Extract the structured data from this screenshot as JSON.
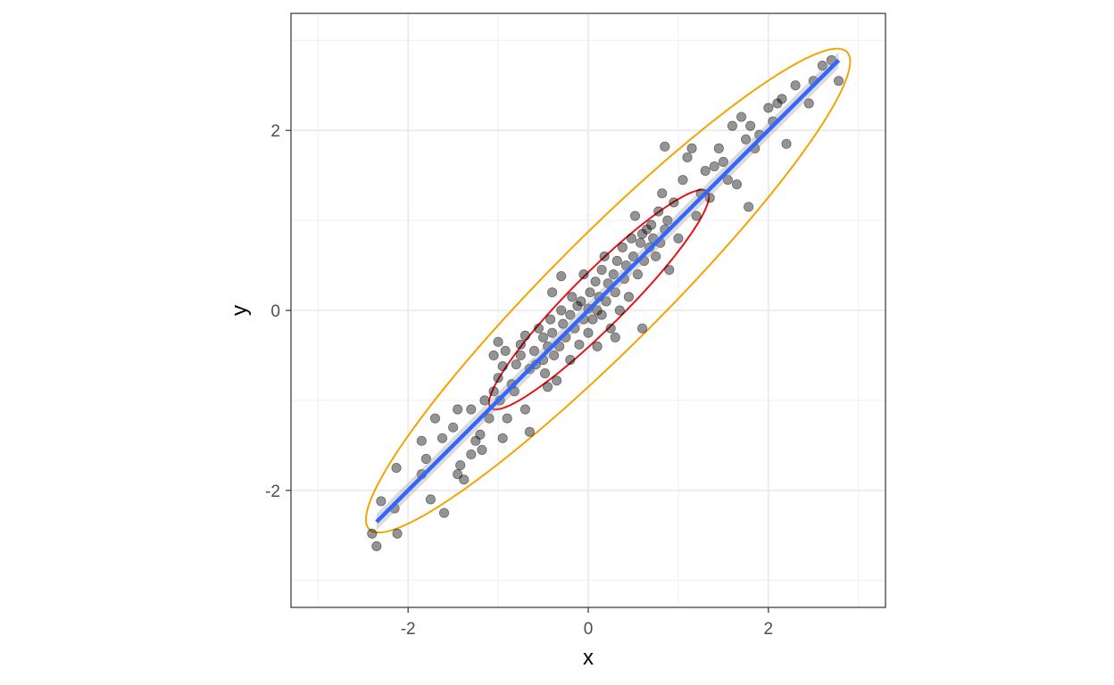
{
  "chart_data": {
    "type": "scatter",
    "xlabel": "x",
    "ylabel": "y",
    "xlim": [
      -3.3,
      3.3
    ],
    "ylim": [
      -3.3,
      3.3
    ],
    "x_ticks": [
      -2,
      0,
      2
    ],
    "y_ticks": [
      -2,
      0,
      2
    ],
    "x_tick_labels": [
      "-2",
      "0",
      "2"
    ],
    "y_tick_labels": [
      "-2",
      "0",
      "2"
    ],
    "grid": true,
    "points": [
      [
        -2.35,
        -2.62
      ],
      [
        -2.4,
        -2.48
      ],
      [
        -2.12,
        -2.48
      ],
      [
        -2.3,
        -2.12
      ],
      [
        -2.15,
        -2.2
      ],
      [
        -2.13,
        -1.75
      ],
      [
        -1.85,
        -1.45
      ],
      [
        -1.8,
        -1.65
      ],
      [
        -1.85,
        -1.82
      ],
      [
        -1.75,
        -2.1
      ],
      [
        -1.6,
        -2.25
      ],
      [
        -1.7,
        -1.2
      ],
      [
        -1.62,
        -1.42
      ],
      [
        -1.5,
        -1.3
      ],
      [
        -1.45,
        -1.1
      ],
      [
        -1.45,
        -1.82
      ],
      [
        -1.42,
        -1.72
      ],
      [
        -1.38,
        -1.88
      ],
      [
        -1.3,
        -1.6
      ],
      [
        -1.3,
        -1.1
      ],
      [
        -1.25,
        -1.45
      ],
      [
        -1.2,
        -1.38
      ],
      [
        -1.18,
        -1.55
      ],
      [
        -1.15,
        -1.0
      ],
      [
        -1.1,
        -1.2
      ],
      [
        -1.05,
        -0.9
      ],
      [
        -1.0,
        -0.75
      ],
      [
        -0.98,
        -1.0
      ],
      [
        -0.95,
        -0.62
      ],
      [
        -0.92,
        -0.45
      ],
      [
        -1.05,
        -0.5
      ],
      [
        -1.0,
        -0.35
      ],
      [
        -0.95,
        -1.42
      ],
      [
        -0.9,
        -1.2
      ],
      [
        -0.85,
        -0.82
      ],
      [
        -0.82,
        -0.9
      ],
      [
        -0.8,
        -0.6
      ],
      [
        -0.75,
        -0.5
      ],
      [
        -0.75,
        -0.38
      ],
      [
        -0.7,
        -0.28
      ],
      [
        -0.7,
        -1.1
      ],
      [
        -0.65,
        -1.35
      ],
      [
        -0.65,
        -0.65
      ],
      [
        -0.6,
        -0.45
      ],
      [
        -0.58,
        -0.6
      ],
      [
        -0.55,
        -0.2
      ],
      [
        -0.5,
        -0.3
      ],
      [
        -0.5,
        -0.55
      ],
      [
        -0.48,
        -0.7
      ],
      [
        -0.45,
        -0.85
      ],
      [
        -0.45,
        -0.4
      ],
      [
        -0.42,
        -0.1
      ],
      [
        -0.4,
        -0.25
      ],
      [
        -0.38,
        -0.5
      ],
      [
        -0.35,
        -0.78
      ],
      [
        -0.32,
        -0.4
      ],
      [
        -0.3,
        0.0
      ],
      [
        -0.3,
        0.38
      ],
      [
        -0.28,
        -0.15
      ],
      [
        -0.25,
        -0.3
      ],
      [
        -0.2,
        -0.05
      ],
      [
        -0.2,
        -0.55
      ],
      [
        -0.18,
        0.15
      ],
      [
        -0.15,
        -0.2
      ],
      [
        -0.12,
        0.05
      ],
      [
        -0.1,
        -0.38
      ],
      [
        -0.08,
        0.1
      ],
      [
        -0.05,
        0.4
      ],
      [
        -0.05,
        -0.1
      ],
      [
        0.0,
        0.02
      ],
      [
        0.0,
        -0.25
      ],
      [
        0.02,
        0.2
      ],
      [
        0.05,
        -0.1
      ],
      [
        0.08,
        0.32
      ],
      [
        0.1,
        0.0
      ],
      [
        0.1,
        -0.4
      ],
      [
        0.12,
        0.15
      ],
      [
        0.15,
        -0.05
      ],
      [
        0.15,
        0.45
      ],
      [
        0.18,
        0.6
      ],
      [
        0.2,
        0.1
      ],
      [
        0.22,
        0.3
      ],
      [
        0.25,
        -0.2
      ],
      [
        0.28,
        0.4
      ],
      [
        0.3,
        0.2
      ],
      [
        0.3,
        -0.3
      ],
      [
        0.32,
        0.55
      ],
      [
        0.35,
        0.0
      ],
      [
        0.38,
        0.7
      ],
      [
        0.4,
        0.35
      ],
      [
        0.42,
        0.5
      ],
      [
        0.45,
        0.15
      ],
      [
        0.48,
        0.8
      ],
      [
        0.5,
        0.6
      ],
      [
        0.52,
        1.05
      ],
      [
        0.55,
        0.4
      ],
      [
        0.58,
        0.75
      ],
      [
        0.6,
        0.85
      ],
      [
        0.62,
        0.55
      ],
      [
        0.65,
        0.9
      ],
      [
        0.68,
        0.7
      ],
      [
        0.7,
        0.95
      ],
      [
        0.72,
        0.8
      ],
      [
        0.75,
        0.6
      ],
      [
        0.78,
        1.1
      ],
      [
        0.8,
        0.75
      ],
      [
        0.82,
        1.3
      ],
      [
        0.85,
        0.9
      ],
      [
        0.88,
        1.0
      ],
      [
        0.9,
        0.45
      ],
      [
        0.95,
        1.2
      ],
      [
        1.0,
        0.8
      ],
      [
        1.05,
        1.45
      ],
      [
        1.1,
        1.7
      ],
      [
        1.15,
        1.8
      ],
      [
        1.2,
        1.05
      ],
      [
        1.25,
        1.3
      ],
      [
        1.3,
        1.55
      ],
      [
        1.35,
        1.25
      ],
      [
        1.4,
        1.6
      ],
      [
        1.45,
        1.8
      ],
      [
        1.5,
        1.65
      ],
      [
        1.55,
        1.45
      ],
      [
        1.6,
        2.05
      ],
      [
        1.65,
        1.4
      ],
      [
        1.7,
        2.15
      ],
      [
        1.75,
        1.9
      ],
      [
        1.8,
        2.05
      ],
      [
        1.78,
        1.15
      ],
      [
        1.85,
        1.8
      ],
      [
        1.9,
        1.95
      ],
      [
        2.0,
        2.25
      ],
      [
        2.05,
        2.1
      ],
      [
        2.1,
        2.3
      ],
      [
        2.15,
        2.35
      ],
      [
        2.2,
        1.85
      ],
      [
        2.3,
        2.5
      ],
      [
        2.45,
        2.3
      ],
      [
        2.5,
        2.55
      ],
      [
        2.6,
        2.72
      ],
      [
        2.7,
        2.78
      ],
      [
        2.78,
        2.55
      ],
      [
        0.85,
        1.82
      ],
      [
        -0.4,
        0.2
      ],
      [
        0.6,
        -0.2
      ]
    ],
    "regression_line": {
      "x": [
        -2.35,
        2.78
      ],
      "y": [
        -2.35,
        2.78
      ],
      "color": "#3366ff"
    },
    "ellipses": [
      {
        "level": "outer",
        "color": "#f5a300",
        "center": [
          0.22,
          0.22
        ],
        "rx": 3.75,
        "ry": 0.62,
        "angle_deg": 45
      },
      {
        "level": "inner",
        "color": "#e8141c",
        "center": [
          0.12,
          0.12
        ],
        "rx": 1.7,
        "ry": 0.3,
        "angle_deg": 45
      }
    ],
    "colors": {
      "points": "#000000",
      "grid": "#ebebeb",
      "panel_border": "#333333"
    }
  }
}
